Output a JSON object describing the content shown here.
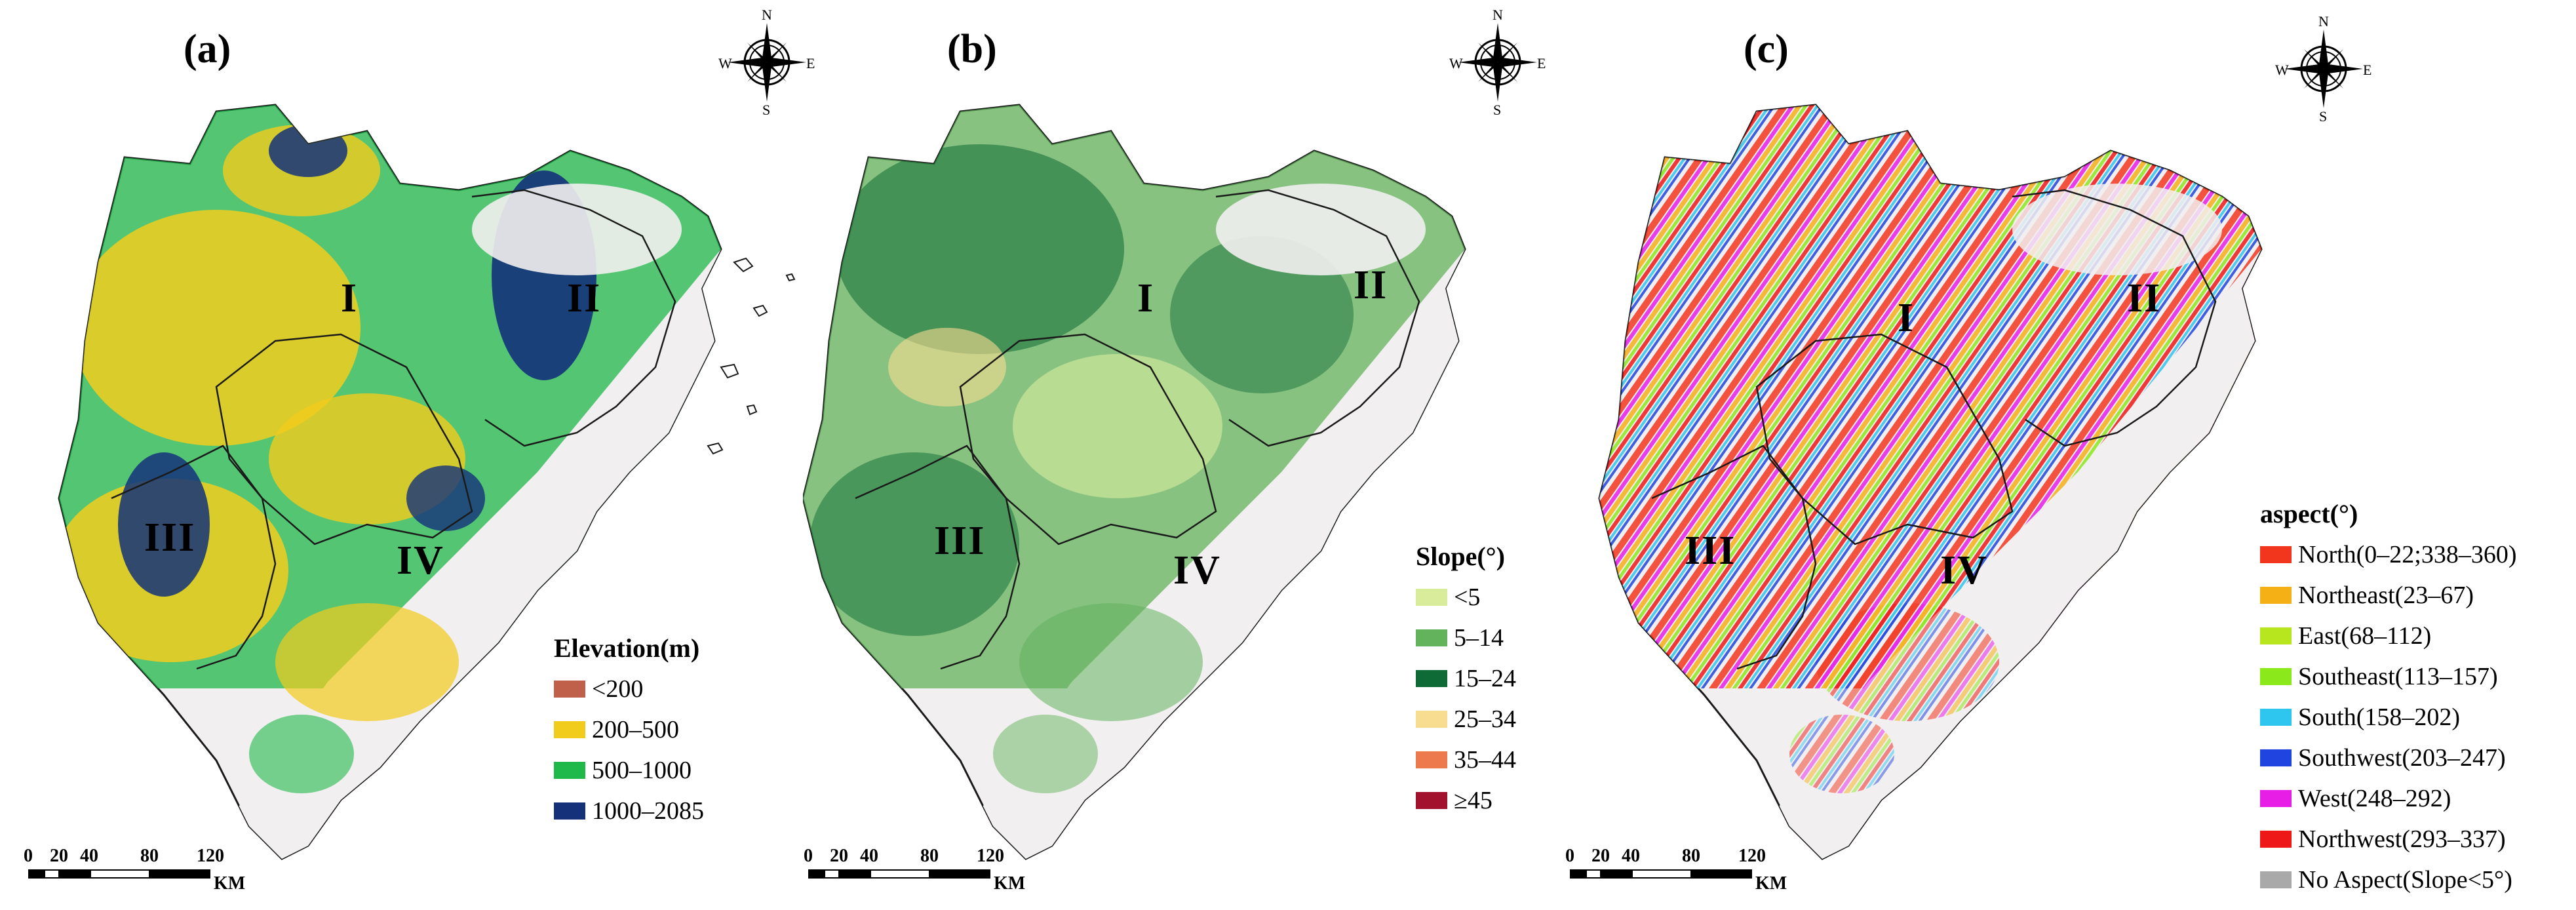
{
  "colors": {
    "land": "#f2eff0",
    "boundary": "#1a1a1a"
  },
  "panels": [
    {
      "letter": "(a)",
      "regions": [
        "I",
        "II",
        "III",
        "IV"
      ],
      "compass": {
        "n": "N",
        "s": "S",
        "e": "E",
        "w": "W"
      },
      "legend": {
        "title": "Elevation(m)",
        "items": [
          {
            "label": "<200",
            "color": "#c0604a"
          },
          {
            "label": "200–500",
            "color": "#f2cc1d"
          },
          {
            "label": "500–1000",
            "color": "#1fb84a"
          },
          {
            "label": "1000–2085",
            "color": "#14317a"
          }
        ]
      },
      "scale": {
        "ticks": [
          "0",
          "20",
          "40",
          "80",
          "120"
        ],
        "unit": "KM"
      }
    },
    {
      "letter": "(b)",
      "regions": [
        "I",
        "II",
        "III",
        "IV"
      ],
      "compass": {
        "n": "N",
        "s": "S",
        "e": "E",
        "w": "W"
      },
      "legend": {
        "title": "Slope(°)",
        "items": [
          {
            "label": "<5",
            "color": "#d9ec9c"
          },
          {
            "label": "5–14",
            "color": "#63b35c"
          },
          {
            "label": "15–24",
            "color": "#0e6b35"
          },
          {
            "label": "25–34",
            "color": "#f8dc8f"
          },
          {
            "label": "35–44",
            "color": "#ec7a4c"
          },
          {
            "label": "≥45",
            "color": "#a3122c"
          }
        ]
      },
      "scale": {
        "ticks": [
          "0",
          "20",
          "40",
          "80",
          "120"
        ],
        "unit": "KM"
      }
    },
    {
      "letter": "(c)",
      "regions": [
        "I",
        "II",
        "III",
        "IV"
      ],
      "compass": {
        "n": "N",
        "s": "S",
        "e": "E",
        "w": "W"
      },
      "legend": {
        "title": "aspect(°)",
        "items": [
          {
            "label": "North(0–22;338–360)",
            "color": "#f2361e"
          },
          {
            "label": "Northeast(23–67)",
            "color": "#f5b016"
          },
          {
            "label": "East(68–112)",
            "color": "#b8e61e"
          },
          {
            "label": "Southeast(113–157)",
            "color": "#8ae81b"
          },
          {
            "label": "South(158–202)",
            "color": "#2ec6ee"
          },
          {
            "label": "Southwest(203–247)",
            "color": "#1f44e0"
          },
          {
            "label": "West(248–292)",
            "color": "#e61ee6"
          },
          {
            "label": "Northwest(293–337)",
            "color": "#ee1818"
          },
          {
            "label": "No Aspect(Slope<5°)",
            "color": "#a9a9a9"
          }
        ]
      },
      "scale": {
        "ticks": [
          "0",
          "20",
          "40",
          "80",
          "120"
        ],
        "unit": "KM"
      }
    }
  ]
}
